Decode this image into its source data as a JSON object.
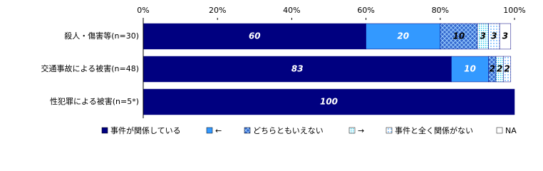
{
  "chart_data": {
    "type": "stacked-bar-horizontal",
    "categories": [
      "殺人・傷害等(n=30)",
      "交通事故による被害(n=48)",
      "性犯罪による被害(n=5*)"
    ],
    "series": [
      {
        "name": "事件が関係している",
        "color": "#000080",
        "pattern": "solid",
        "values": [
          60,
          83,
          100
        ]
      },
      {
        "name": "←",
        "color": "#3399ff",
        "pattern": "solid",
        "values": [
          20,
          10,
          null
        ]
      },
      {
        "name": "どちらともいえない",
        "color": "#3366cc",
        "pattern": "crosshatch",
        "values": [
          10,
          2,
          null
        ]
      },
      {
        "name": "→",
        "color": "#33ccee",
        "pattern": "dots",
        "values": [
          3,
          2,
          null
        ]
      },
      {
        "name": "事件と全く関係がない",
        "color": "#99ccff",
        "pattern": "dots",
        "values": [
          3,
          2,
          null
        ]
      },
      {
        "name": "NA",
        "color": "#ffffff",
        "pattern": "solid",
        "values": [
          3,
          null,
          null
        ]
      }
    ],
    "xlim": [
      0,
      100
    ],
    "xticks": [
      {
        "value": 0,
        "label": "0%"
      },
      {
        "value": 20,
        "label": "20%"
      },
      {
        "value": 40,
        "label": "40%"
      },
      {
        "value": 60,
        "label": "60%"
      },
      {
        "value": 80,
        "label": "80%"
      },
      {
        "value": 100,
        "label": "100%"
      }
    ]
  }
}
